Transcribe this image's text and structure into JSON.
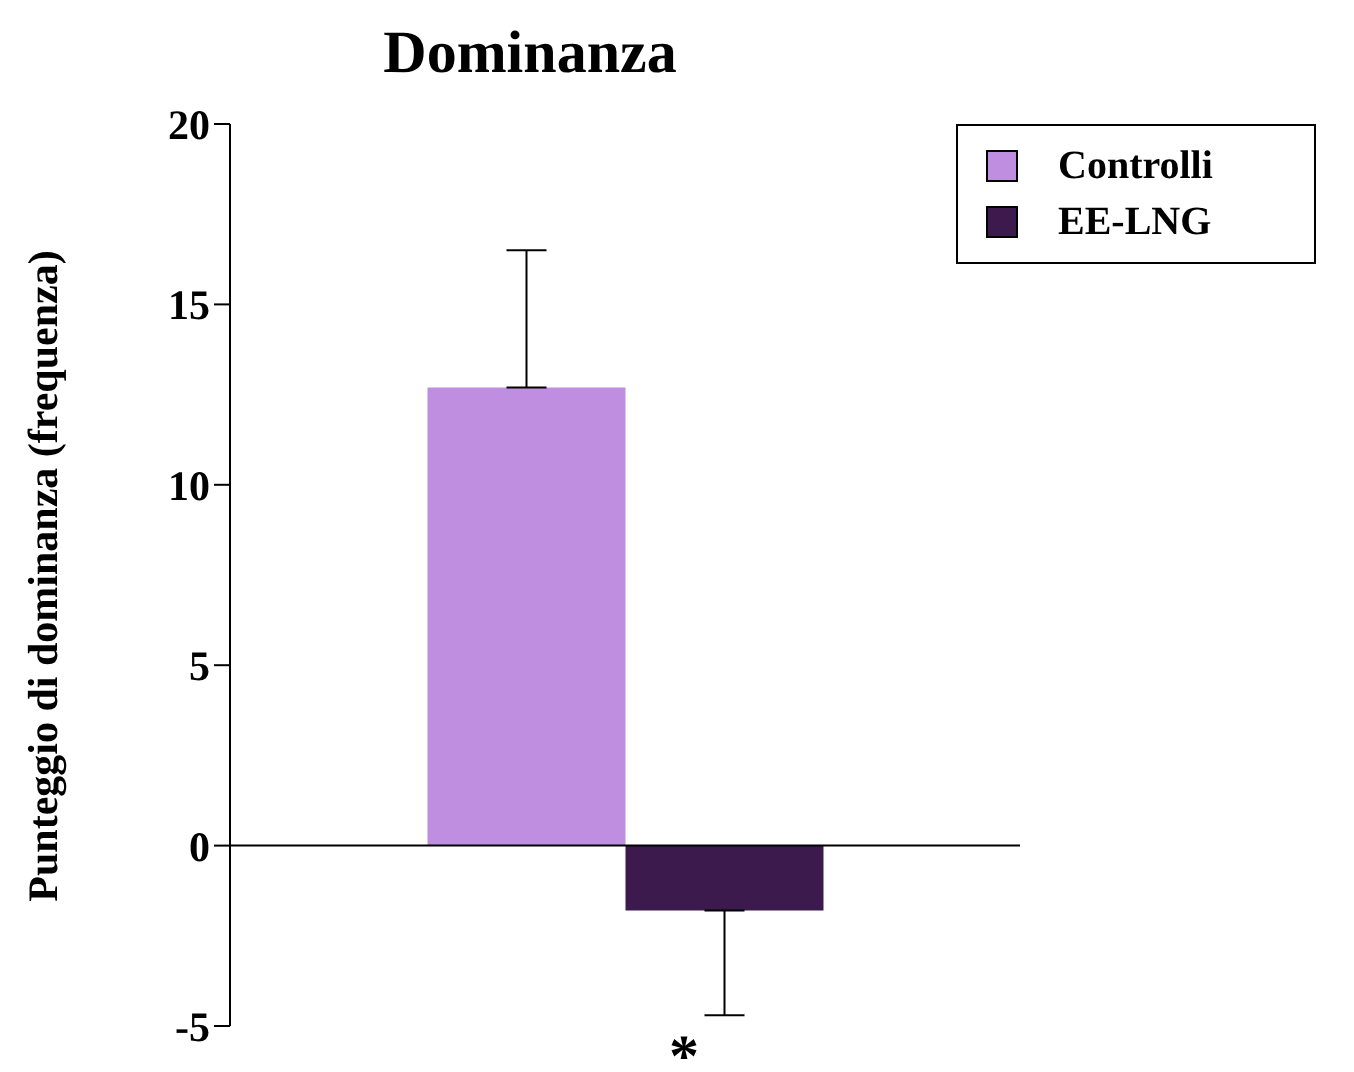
{
  "chart_data": {
    "type": "bar",
    "title": "Dominanza",
    "ylabel": "Punteggio di dominanza (frequenza)",
    "categories": [
      null
    ],
    "series": [
      {
        "name": "Controlli",
        "color": "#c08ee0",
        "values": [
          12.7
        ],
        "errors": [
          [
            12.7,
            16.5
          ]
        ]
      },
      {
        "name": "EE-LNG",
        "color": "#3d1a4e",
        "values": [
          -1.8
        ],
        "errors": [
          [
            -4.7,
            -1.8
          ]
        ]
      }
    ],
    "ylim": [
      -5,
      20
    ],
    "yticks": [
      -5,
      0,
      5,
      10,
      15,
      20
    ],
    "legend": "top right",
    "annotations": [
      "*"
    ]
  }
}
